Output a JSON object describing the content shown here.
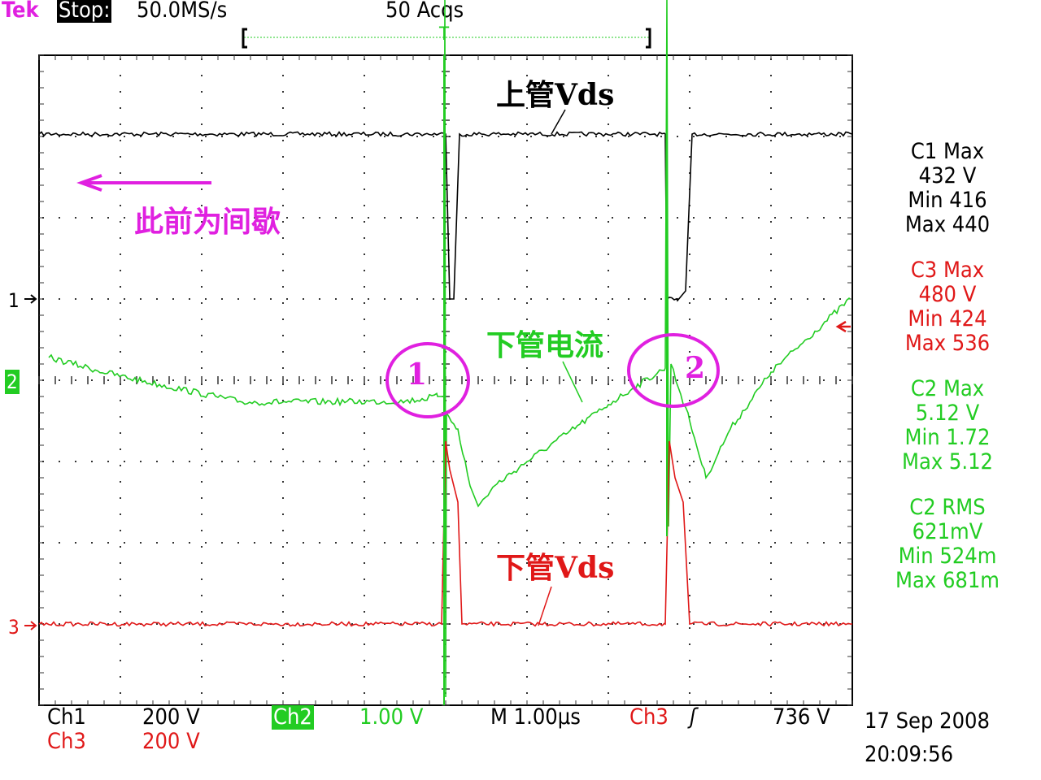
{
  "header": {
    "brand": "Tek",
    "state": "Stop:",
    "sample_rate": "50.0MS/s",
    "acquisitions": "50 Acqs",
    "trigger_marker": "T"
  },
  "channel_markers": {
    "ch1": "1",
    "ch2": "2",
    "ch3": "3"
  },
  "annotations": {
    "upper_vds": "上管Vds",
    "intermittent_before": "此前为间歇",
    "lower_current": "下管电流",
    "lower_vds": "下管Vds",
    "circle_1": "1",
    "circle_2": "2"
  },
  "measurements": [
    {
      "lines": [
        "C1 Max",
        "432 V",
        "Min 416",
        "Max 440"
      ],
      "color": "#000000"
    },
    {
      "lines": [
        "C3 Max",
        "480 V",
        "Min 424",
        "Max 536"
      ],
      "color": "#e01818"
    },
    {
      "lines": [
        "C2 Max",
        "5.12 V",
        "Min 1.72",
        "Max 5.12"
      ],
      "color": "#22cc22"
    },
    {
      "lines": [
        "C2 RMS",
        "621mV",
        "Min 524m",
        "Max 681m"
      ],
      "color": "#22cc22"
    }
  ],
  "footer": {
    "ch1_label": "Ch1",
    "ch1_scale": "200 V",
    "ch2_label": "Ch2",
    "ch2_scale": "1.00 V",
    "timebase": "M 1.00µs",
    "trigger_source": "Ch3",
    "trigger_slope": "ʃ",
    "trigger_level": "736 V",
    "ch3_label": "Ch3",
    "ch3_scale": "200 V",
    "date": "17 Sep 2008",
    "time": "20:09:56"
  },
  "colors": {
    "ch1": "#000000",
    "ch2": "#22cc22",
    "ch3": "#e01818",
    "annotation": "#e020e0",
    "grid": "#000000"
  },
  "chart_data": {
    "type": "line",
    "title": "",
    "xlabel": "",
    "ylabel": "",
    "x_units": "µs",
    "xlim": [
      -5,
      5
    ],
    "horizontal_divisions": 10,
    "vertical_divisions": 8,
    "grid": true,
    "trigger": {
      "source": "Ch3",
      "level_V": 736,
      "slope": "rising",
      "time_us": 0
    },
    "series": [
      {
        "name": "Ch1",
        "volts_per_div": 200,
        "ground_div": 1,
        "points": [
          [
            -5,
            406
          ],
          [
            0.0,
            406
          ],
          [
            0.05,
            0
          ],
          [
            0.1,
            0
          ],
          [
            0.17,
            406
          ],
          [
            2.7,
            406
          ],
          [
            2.72,
            0
          ],
          [
            2.85,
            -4
          ],
          [
            2.95,
            20
          ],
          [
            3.03,
            406
          ],
          [
            5,
            406
          ]
        ]
      },
      {
        "name": "Ch2",
        "volts_per_div": 1.0,
        "ground_div": 0,
        "points": [
          [
            -4.88,
            0.28
          ],
          [
            -4,
            0.05
          ],
          [
            -2.5,
            -0.27
          ],
          [
            -0.5,
            -0.26
          ],
          [
            -0.1,
            -0.2
          ],
          [
            -0.02,
            -0.2
          ],
          [
            -0.01,
            4.7
          ],
          [
            0.0,
            -3.9
          ],
          [
            0.01,
            -0.4
          ],
          [
            0.15,
            -0.6
          ],
          [
            0.3,
            -1.3
          ],
          [
            0.4,
            -1.55
          ],
          [
            0.6,
            -1.3
          ],
          [
            1,
            -1.0
          ],
          [
            1.5,
            -0.65
          ],
          [
            2,
            -0.3
          ],
          [
            2.3,
            -0.1
          ],
          [
            2.7,
            0.15
          ],
          [
            2.72,
            4.7
          ],
          [
            2.74,
            -1.8
          ],
          [
            2.77,
            0.2
          ],
          [
            3.0,
            -0.5
          ],
          [
            3.2,
            -1.2
          ],
          [
            3.5,
            -0.6
          ],
          [
            4,
            0.1
          ],
          [
            4.97,
            1.0
          ]
        ]
      },
      {
        "name": "Ch3",
        "volts_per_div": 200,
        "ground_div": -3,
        "points": [
          [
            -5,
            0
          ],
          [
            -0.05,
            0
          ],
          [
            0,
            450
          ],
          [
            0.05,
            380
          ],
          [
            0.15,
            300
          ],
          [
            0.2,
            0
          ],
          [
            2.7,
            0
          ],
          [
            2.75,
            450
          ],
          [
            2.82,
            360
          ],
          [
            2.92,
            300
          ],
          [
            3.0,
            0
          ],
          [
            5,
            0
          ]
        ]
      }
    ]
  }
}
